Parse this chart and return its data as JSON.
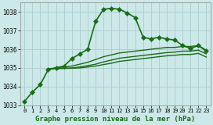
{
  "title": "Graphe pression niveau de la mer (hPa)",
  "background_color": "#cce8e8",
  "grid_color": "#aacccc",
  "line_color": "#1a6b1a",
  "marker_color": "#1a6b1a",
  "ylim": [
    1033.0,
    1038.5
  ],
  "xlim": [
    -0.5,
    23.5
  ],
  "yticks": [
    1033,
    1034,
    1035,
    1036,
    1037,
    1038
  ],
  "xticks": [
    0,
    1,
    2,
    3,
    4,
    5,
    6,
    7,
    8,
    9,
    10,
    11,
    12,
    13,
    14,
    15,
    16,
    17,
    18,
    19,
    20,
    21,
    22,
    23
  ],
  "series": [
    {
      "x": [
        0,
        1,
        2,
        3,
        4,
        5,
        6,
        7,
        8,
        9,
        10,
        11,
        12,
        13,
        14,
        15,
        16,
        17,
        18,
        19,
        20,
        21,
        22,
        23
      ],
      "y": [
        1033.2,
        1033.7,
        1034.1,
        1034.9,
        1035.0,
        1035.1,
        1035.5,
        1035.75,
        1036.0,
        1037.5,
        1038.15,
        1038.2,
        1038.15,
        1037.95,
        1037.7,
        1036.65,
        1036.55,
        1036.65,
        1036.55,
        1036.5,
        1036.2,
        1036.05,
        1036.2,
        1035.9
      ],
      "marker": "D",
      "markersize": 3.0,
      "linewidth": 1.2
    },
    {
      "x": [
        3,
        4,
        5,
        6,
        7,
        8,
        9,
        10,
        11,
        12,
        13,
        14,
        15,
        16,
        17,
        18,
        19,
        20,
        21,
        22,
        23
      ],
      "y": [
        1034.95,
        1035.0,
        1035.05,
        1035.1,
        1035.2,
        1035.3,
        1035.45,
        1035.6,
        1035.7,
        1035.8,
        1035.85,
        1035.9,
        1035.95,
        1036.0,
        1036.05,
        1036.1,
        1036.1,
        1036.15,
        1036.15,
        1036.2,
        1035.95
      ],
      "marker": null,
      "markersize": 0,
      "linewidth": 1.0
    },
    {
      "x": [
        3,
        4,
        5,
        6,
        7,
        8,
        9,
        10,
        11,
        12,
        13,
        14,
        15,
        16,
        17,
        18,
        19,
        20,
        21,
        22,
        23
      ],
      "y": [
        1034.95,
        1034.97,
        1034.98,
        1035.0,
        1035.05,
        1035.12,
        1035.2,
        1035.32,
        1035.42,
        1035.52,
        1035.57,
        1035.62,
        1035.67,
        1035.72,
        1035.77,
        1035.82,
        1035.85,
        1035.9,
        1035.9,
        1035.95,
        1035.75
      ],
      "marker": null,
      "markersize": 0,
      "linewidth": 1.0
    },
    {
      "x": [
        3,
        4,
        5,
        6,
        7,
        8,
        9,
        10,
        11,
        12,
        13,
        14,
        15,
        16,
        17,
        18,
        19,
        20,
        21,
        22,
        23
      ],
      "y": [
        1034.95,
        1034.96,
        1034.97,
        1034.98,
        1035.0,
        1035.05,
        1035.1,
        1035.18,
        1035.25,
        1035.35,
        1035.4,
        1035.45,
        1035.5,
        1035.55,
        1035.6,
        1035.65,
        1035.68,
        1035.72,
        1035.72,
        1035.78,
        1035.58
      ],
      "marker": null,
      "markersize": 0,
      "linewidth": 1.0
    }
  ]
}
